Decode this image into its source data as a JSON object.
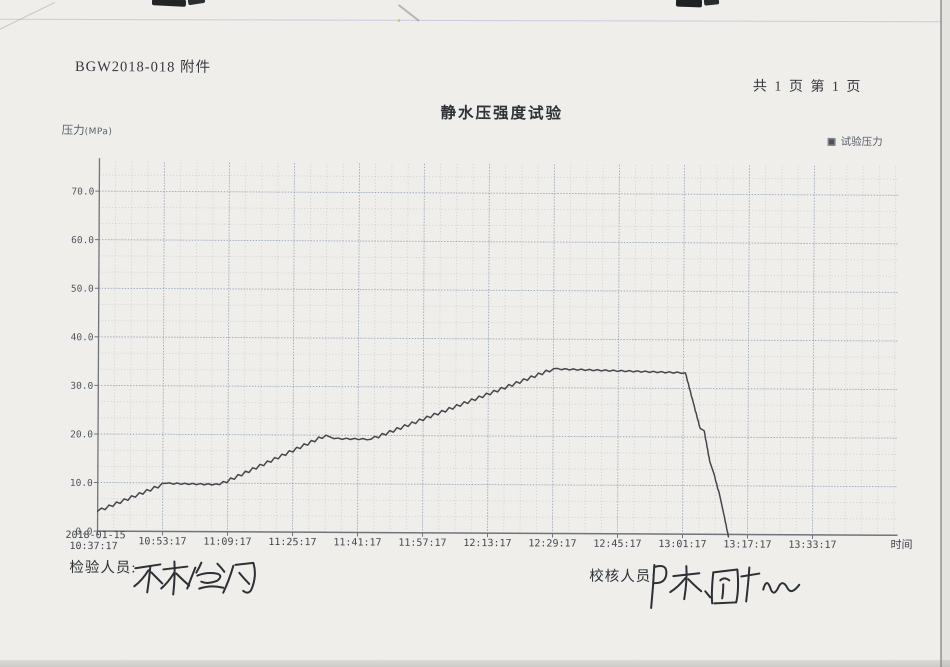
{
  "header": {
    "doc_number": "BGW2018-018 附件",
    "page_info": "共 1 页  第 1 页"
  },
  "chart": {
    "title": "静水压强度试验",
    "ylabel_main": "压力",
    "ylabel_unit": "(MPa)",
    "legend_label": "试验压力"
  },
  "footer": {
    "inspector_label": "检验人员:",
    "checker_label": "校核人员:"
  },
  "colors": {
    "paper": "#efeeeb",
    "ink": "#33363b",
    "axis_text": "#4e5560",
    "grid_minor": "rgba(130,150,176,0.38)",
    "grid_major": "rgba(106,127,158,0.58)",
    "axis_line": "#70747c",
    "curve": "#45474c",
    "legend_swatch": "#4b505a",
    "signature_ink": "#2c2f35"
  },
  "chart_data": {
    "type": "line",
    "title": "静水压强度试验",
    "xlabel": "时间",
    "ylabel": "压力(MPa)",
    "legend": [
      "试验压力"
    ],
    "legend_position": "top-right",
    "grid": true,
    "start_date": "2018-01-15",
    "x_tick_labels": [
      "10:37:17",
      "10:53:17",
      "11:09:17",
      "11:25:17",
      "11:41:17",
      "11:57:17",
      "12:13:17",
      "12:29:17",
      "12:45:17",
      "13:01:17",
      "13:17:17",
      "13:33:17"
    ],
    "x_tick_interval_min": 16,
    "y_tick_labels": [
      "0.0",
      "10.0",
      "20.0",
      "30.0",
      "40.0",
      "50.0",
      "60.0",
      "70.0"
    ],
    "ylim": [
      0,
      76
    ],
    "series": [
      {
        "name": "试验压力",
        "points_t_min_vs_mpa": [
          {
            "t": 0.0,
            "p": 4.1
          },
          {
            "t": 16.7,
            "p": 9.9,
            "j": 1
          },
          {
            "t": 30.0,
            "p": 9.7,
            "j": 2
          },
          {
            "t": 56.1,
            "p": 20.0,
            "j": 1
          },
          {
            "t": 58.1,
            "p": 19.3,
            "j": 0
          },
          {
            "t": 67.2,
            "p": 19.2,
            "j": 2
          },
          {
            "t": 112.0,
            "p": 33.9,
            "j": 1
          },
          {
            "t": 144.5,
            "p": 33.2,
            "j": 2
          },
          {
            "t": 146.5,
            "p": 27.0,
            "j": 2
          },
          {
            "t": 148.2,
            "p": 21.8,
            "j": 2
          },
          {
            "t": 149.2,
            "p": 21.3,
            "j": 0
          },
          {
            "t": 150.6,
            "p": 15.0,
            "j": 2
          },
          {
            "t": 151.6,
            "p": 12.6,
            "j": 0
          },
          {
            "t": 153.1,
            "p": 8.0,
            "j": 2
          },
          {
            "t": 154.1,
            "p": 4.3,
            "j": 0
          },
          {
            "t": 155.3,
            "p": -0.5,
            "j": 2
          }
        ]
      }
    ]
  }
}
